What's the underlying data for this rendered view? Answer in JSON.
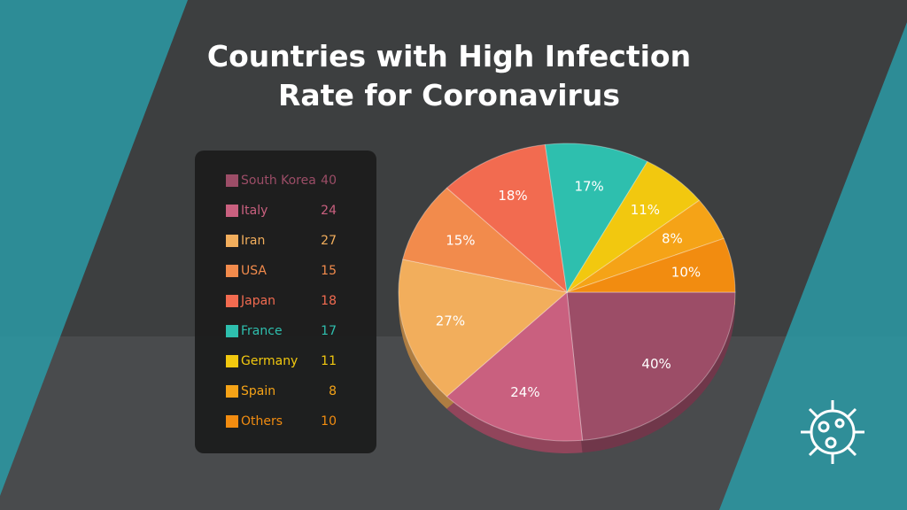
{
  "chart_data": {
    "type": "pie",
    "title": "Countries with High Infection Rate for Coronavirus",
    "categories": [
      "South Korea",
      "Italy",
      "Iran",
      "USA",
      "Japan",
      "France",
      "Germany",
      "Spain",
      "Others"
    ],
    "values": [
      40,
      24,
      27,
      15,
      18,
      17,
      11,
      8,
      10
    ],
    "value_labels": [
      "40%",
      "24%",
      "27%",
      "15%",
      "18%",
      "17%",
      "11%",
      "8%",
      "10%"
    ],
    "colors": [
      "#9c4d67",
      "#c9607f",
      "#f2ae5c",
      "#f28b4c",
      "#f26b50",
      "#2ebfae",
      "#f2c80f",
      "#f5a317",
      "#f28c10"
    ],
    "legend": "left"
  }
}
